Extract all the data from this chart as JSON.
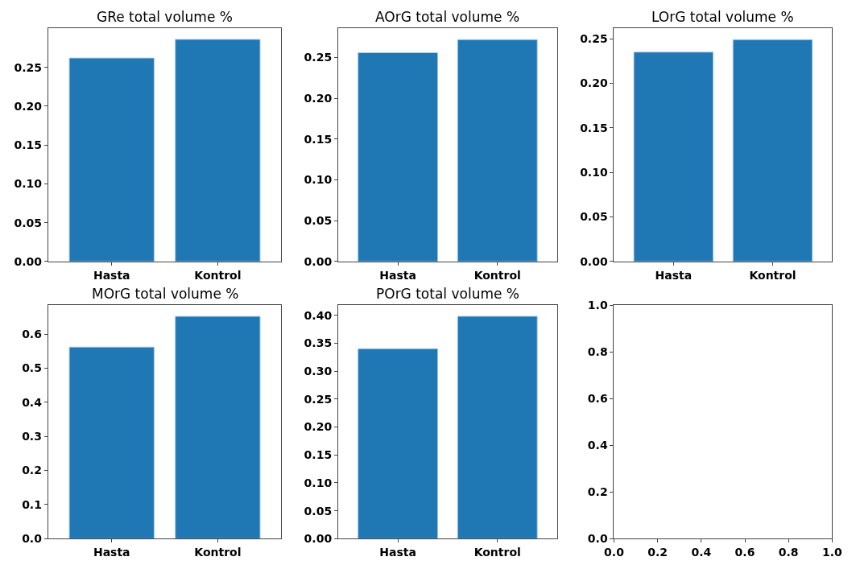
{
  "chart_data": [
    {
      "type": "bar",
      "title": "GRe total volume %",
      "categories": [
        "Hasta",
        "Kontrol"
      ],
      "values": [
        0.262,
        0.286
      ],
      "color": "#1f77b4",
      "ylim": [
        0,
        0.3
      ],
      "yticks": [
        {
          "value": 0,
          "label": "0.00"
        },
        {
          "value": 0.05,
          "label": "0.05"
        },
        {
          "value": 0.1,
          "label": "0.10"
        },
        {
          "value": 0.15,
          "label": "0.15"
        },
        {
          "value": 0.2,
          "label": "0.20"
        },
        {
          "value": 0.25,
          "label": "0.25"
        }
      ]
    },
    {
      "type": "bar",
      "title": "AOrG total volume %",
      "categories": [
        "Hasta",
        "Kontrol"
      ],
      "values": [
        0.256,
        0.272
      ],
      "color": "#1f77b4",
      "ylim": [
        0,
        0.2856
      ],
      "yticks": [
        {
          "value": 0,
          "label": "0.00"
        },
        {
          "value": 0.05,
          "label": "0.05"
        },
        {
          "value": 0.1,
          "label": "0.10"
        },
        {
          "value": 0.15,
          "label": "0.15"
        },
        {
          "value": 0.2,
          "label": "0.20"
        },
        {
          "value": 0.25,
          "label": "0.25"
        }
      ]
    },
    {
      "type": "bar",
      "title": "LOrG total volume %",
      "categories": [
        "Hasta",
        "Kontrol"
      ],
      "values": [
        0.235,
        0.249
      ],
      "color": "#1f77b4",
      "ylim": [
        0,
        0.2615
      ],
      "yticks": [
        {
          "value": 0,
          "label": "0.00"
        },
        {
          "value": 0.05,
          "label": "0.05"
        },
        {
          "value": 0.1,
          "label": "0.10"
        },
        {
          "value": 0.15,
          "label": "0.15"
        },
        {
          "value": 0.2,
          "label": "0.20"
        },
        {
          "value": 0.25,
          "label": "0.25"
        }
      ]
    },
    {
      "type": "bar",
      "title": "MOrG total volume %",
      "categories": [
        "Hasta",
        "Kontrol"
      ],
      "values": [
        0.562,
        0.652
      ],
      "color": "#1f77b4",
      "ylim": [
        0,
        0.685
      ],
      "yticks": [
        {
          "value": 0,
          "label": "0.0"
        },
        {
          "value": 0.1,
          "label": "0.1"
        },
        {
          "value": 0.2,
          "label": "0.2"
        },
        {
          "value": 0.3,
          "label": "0.3"
        },
        {
          "value": 0.4,
          "label": "0.4"
        },
        {
          "value": 0.5,
          "label": "0.5"
        },
        {
          "value": 0.6,
          "label": "0.6"
        }
      ]
    },
    {
      "type": "bar",
      "title": "POrG total volume %",
      "categories": [
        "Hasta",
        "Kontrol"
      ],
      "values": [
        0.34,
        0.398
      ],
      "color": "#1f77b4",
      "ylim": [
        0,
        0.418
      ],
      "yticks": [
        {
          "value": 0,
          "label": "0.00"
        },
        {
          "value": 0.05,
          "label": "0.05"
        },
        {
          "value": 0.1,
          "label": "0.10"
        },
        {
          "value": 0.15,
          "label": "0.15"
        },
        {
          "value": 0.2,
          "label": "0.20"
        },
        {
          "value": 0.25,
          "label": "0.25"
        },
        {
          "value": 0.3,
          "label": "0.30"
        },
        {
          "value": 0.35,
          "label": "0.35"
        },
        {
          "value": 0.4,
          "label": "0.40"
        }
      ]
    },
    {
      "type": "scatter",
      "xlim": [
        0,
        1
      ],
      "ylim": [
        0,
        1
      ],
      "xticks": [
        {
          "value": 0,
          "label": "0.0"
        },
        {
          "value": 0.2,
          "label": "0.2"
        },
        {
          "value": 0.4,
          "label": "0.4"
        },
        {
          "value": 0.6,
          "label": "0.6"
        },
        {
          "value": 0.8,
          "label": "0.8"
        },
        {
          "value": 1,
          "label": "1.0"
        }
      ],
      "yticks": [
        {
          "value": 0,
          "label": "0.0"
        },
        {
          "value": 0.2,
          "label": "0.2"
        },
        {
          "value": 0.4,
          "label": "0.4"
        },
        {
          "value": 0.6,
          "label": "0.6"
        },
        {
          "value": 0.8,
          "label": "0.8"
        },
        {
          "value": 1,
          "label": "1.0"
        }
      ]
    }
  ]
}
